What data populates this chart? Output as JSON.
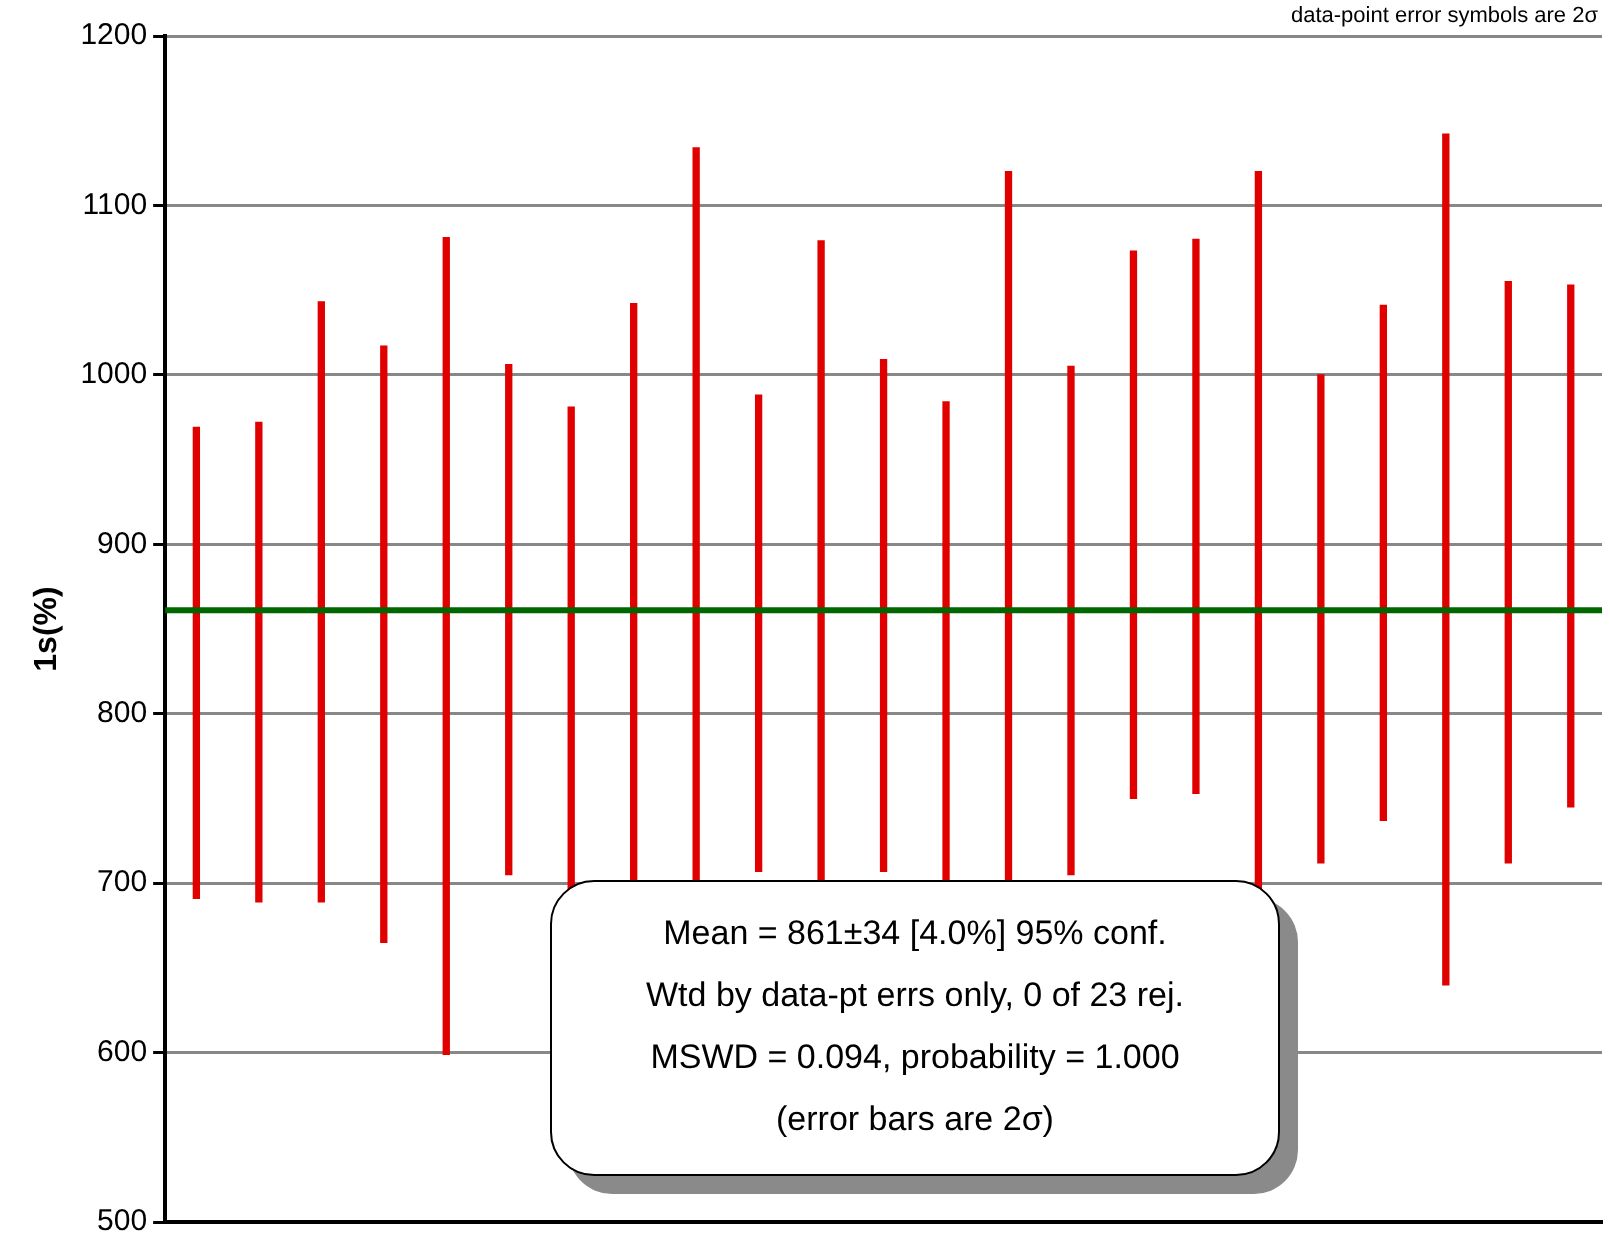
{
  "chart_data": {
    "type": "bar",
    "ylabel": "1s(%)",
    "categories": [
      null,
      null,
      null,
      null,
      null,
      null,
      null,
      null,
      null,
      null,
      null,
      null,
      null,
      null,
      null,
      null,
      null,
      null,
      null,
      null,
      null,
      null,
      null
    ],
    "base": [
      691,
      689,
      689,
      665,
      599,
      705,
      690,
      650,
      560,
      707,
      615,
      707,
      690,
      575,
      705,
      750,
      753,
      575,
      712,
      737,
      640,
      712,
      745
    ],
    "values": [
      278,
      283,
      354,
      352,
      482,
      301,
      291,
      392,
      574,
      281,
      464,
      302,
      294,
      545,
      300,
      323,
      327,
      545,
      288,
      304,
      502,
      343,
      308
    ],
    "color": "#e00000",
    "ylim": [
      500,
      1200
    ],
    "yticks": [
      500,
      600,
      700,
      800,
      900,
      1000,
      1100,
      1200
    ],
    "grid": "y",
    "tick_labels": "y",
    "legend": false,
    "ref_lines": [
      {
        "axis": "y",
        "value": 861,
        "color": "#006600"
      }
    ],
    "annotations": [
      "Mean = 861±34  [4.0%]  95% conf.",
      "Wtd by data-pt errs only, 0 of 23 rej.",
      "MSWD = 0.094, probability = 1.000",
      "(error bars are 2σ)",
      "data-point error symbols are 2σ"
    ]
  }
}
